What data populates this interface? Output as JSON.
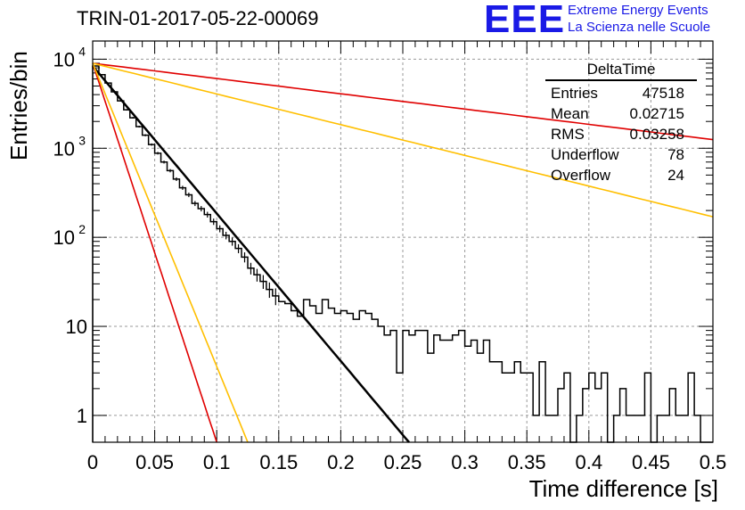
{
  "header": {
    "title": "TRIN-01-2017-05-22-00069",
    "logo_text": "EEE",
    "logo_line1": "Extreme Energy Events",
    "logo_line2": "La Scienza nelle Scuole"
  },
  "stats": {
    "title": "DeltaTime",
    "rows": [
      {
        "label": "Entries",
        "value": "47518"
      },
      {
        "label": "Mean",
        "value": "0.02715"
      },
      {
        "label": "RMS",
        "value": "0.03258"
      },
      {
        "label": "Underflow",
        "value": "78"
      },
      {
        "label": "Overflow",
        "value": "24"
      }
    ]
  },
  "colors": {
    "histogram": "#000000",
    "fit": "#000000",
    "red": "#e00000",
    "orange": "#ffbf00",
    "grid": "#999999"
  },
  "chart_data": {
    "type": "line",
    "xlabel": "Time difference [s]",
    "ylabel": "Entries/bin",
    "xlim": [
      0,
      0.5
    ],
    "ylim": [
      0.5,
      16000
    ],
    "yscale": "log",
    "grid": true,
    "x_ticks": [
      "0",
      "0.05",
      "0.1",
      "0.15",
      "0.2",
      "0.25",
      "0.3",
      "0.35",
      "0.4",
      "0.45",
      "0.5"
    ],
    "y_ticks": [
      {
        "value": 1,
        "label": "1"
      },
      {
        "value": 10,
        "label": "10"
      },
      {
        "value": 100,
        "label": "10",
        "exp": "2"
      },
      {
        "value": 1000,
        "label": "10",
        "exp": "3"
      },
      {
        "value": 10000,
        "label": "10",
        "exp": "4"
      }
    ],
    "histogram": {
      "bin_width": 0.005,
      "counts": [
        8400,
        6700,
        5400,
        4300,
        3400,
        2700,
        2200,
        1750,
        1400,
        1100,
        880,
        700,
        560,
        450,
        360,
        300,
        240,
        210,
        180,
        150,
        125,
        105,
        90,
        75,
        60,
        45,
        38,
        32,
        26,
        22,
        19,
        18,
        15,
        13,
        20,
        17,
        14,
        20,
        16,
        14,
        15,
        14,
        12,
        15,
        14,
        12,
        10,
        8,
        9,
        3,
        9,
        8,
        9,
        9,
        5,
        8,
        7,
        7,
        8,
        9,
        6,
        7,
        5,
        7,
        4,
        4,
        3,
        3,
        4,
        3,
        3,
        1,
        4,
        1,
        1,
        2,
        3,
        0,
        1,
        2,
        3,
        2,
        3,
        0,
        1,
        2,
        1,
        1,
        1,
        3,
        0,
        1,
        1,
        2,
        1,
        1,
        3,
        1,
        0,
        0
      ]
    },
    "series": [
      {
        "curve": "fit",
        "color": "black",
        "x": [
          0,
          0.255
        ],
        "y": [
          8400,
          0.5
        ]
      },
      {
        "curve": "red steep",
        "color": "red",
        "x": [
          0,
          0.1
        ],
        "y": [
          9000,
          0.5
        ]
      },
      {
        "curve": "orange steep",
        "color": "orange",
        "x": [
          0,
          0.125
        ],
        "y": [
          9000,
          0.5
        ]
      },
      {
        "curve": "red slow",
        "color": "red",
        "x": [
          0,
          0.5
        ],
        "y": [
          9000,
          1250
        ]
      },
      {
        "curve": "orange slow",
        "color": "orange",
        "x": [
          0,
          0.5
        ],
        "y": [
          9000,
          170
        ]
      }
    ]
  }
}
